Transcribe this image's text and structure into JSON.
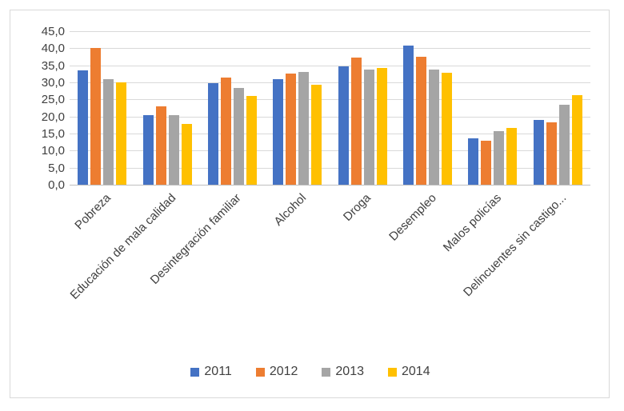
{
  "chart_data": {
    "type": "bar",
    "title": "",
    "xlabel": "",
    "ylabel": "",
    "ylim": [
      0,
      45
    ],
    "y_tick_step": 5,
    "y_tick_labels": [
      "45,0",
      "40,0",
      "35,0",
      "30,0",
      "25,0",
      "20,0",
      "15,0",
      "10,0",
      "5,0",
      "0,0"
    ],
    "grid": true,
    "legend_position": "bottom",
    "categories": [
      "Pobreza",
      "Educación de mala calidad",
      "Desintegración familiar",
      "Alcohol",
      "Droga",
      "Desempleo",
      "Malos policías",
      "Delincuentes sin castigo..."
    ],
    "series": [
      {
        "name": "2011",
        "color": "#4472C4",
        "values": [
          33.5,
          20.5,
          29.8,
          31.0,
          34.6,
          40.7,
          13.7,
          19.1
        ]
      },
      {
        "name": "2012",
        "color": "#ED7D31",
        "values": [
          40.0,
          23.0,
          31.4,
          32.5,
          37.2,
          37.5,
          13.0,
          18.2
        ]
      },
      {
        "name": "2013",
        "color": "#A5A5A5",
        "values": [
          31.0,
          20.5,
          28.4,
          33.0,
          33.7,
          33.7,
          15.7,
          23.4
        ]
      },
      {
        "name": "2014",
        "color": "#FFC000",
        "values": [
          30.0,
          17.9,
          26.0,
          29.4,
          34.3,
          32.7,
          16.6,
          26.3
        ]
      }
    ],
    "colors": {
      "gridline": "#d9d9d9",
      "axis_line": "#bfbfbf",
      "text": "#404040",
      "frame_border": "#d9d9d9"
    }
  }
}
